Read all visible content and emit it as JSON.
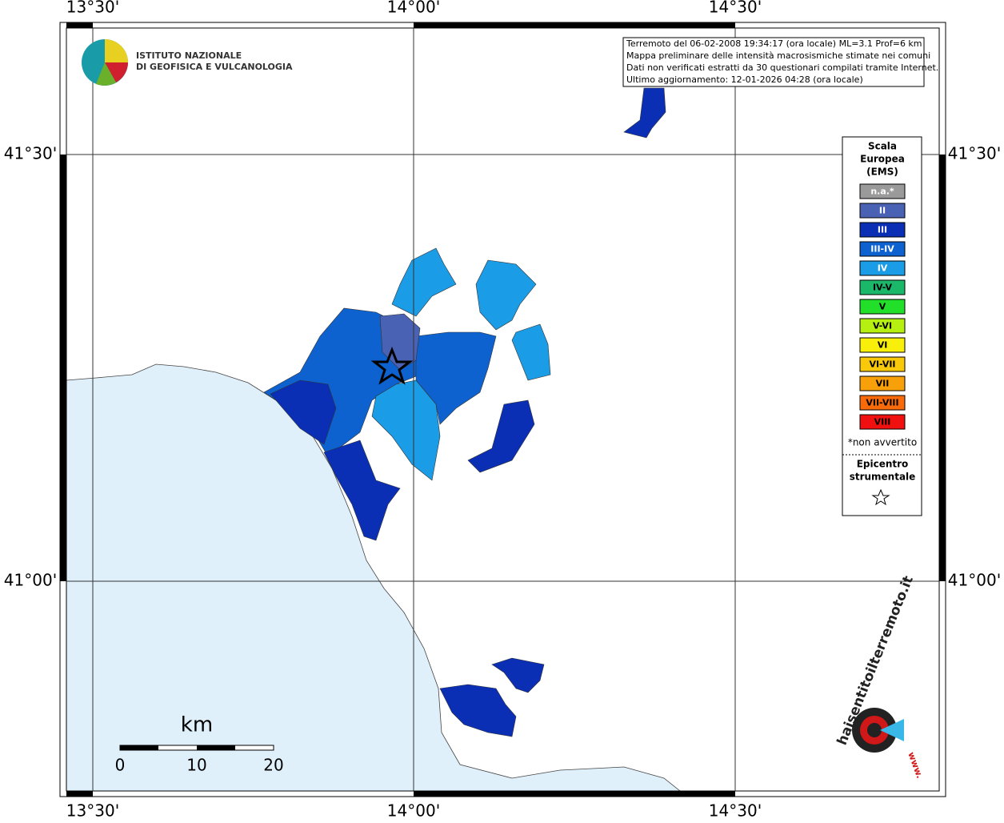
{
  "map": {
    "lon_labels": [
      "13°30'",
      "14°00'",
      "14°30'"
    ],
    "lat_labels": [
      "41°30'",
      "41°00'"
    ],
    "info_box": {
      "lines": [
        "Terremoto del 06-02-2008 19:34:17 (ora locale) ML=3.1 Prof=6 km",
        "Mappa preliminare delle intensità macrosismiche stimate nei comuni",
        "Dati non verificati estratti da 30 questionari compilati tramite Internet.",
        "Ultimo aggiornamento: 12-01-2026 04:28 (ora locale)"
      ]
    },
    "logo": {
      "lines": [
        "ISTITUTO NAZIONALE",
        "DI GEOFISICA E VULCANOLOGIA"
      ]
    },
    "legend": {
      "title": [
        "Scala",
        "Europea",
        "(EMS)"
      ],
      "items": [
        {
          "label": "n.a.*",
          "color": "#9a9a9a",
          "text_color": "#ffffff"
        },
        {
          "label": "II",
          "color": "#4a62b4",
          "text_color": "#ffffff"
        },
        {
          "label": "III",
          "color": "#0a2fb5",
          "text_color": "#ffffff"
        },
        {
          "label": "III-IV",
          "color": "#0d62cf",
          "text_color": "#ffffff"
        },
        {
          "label": "IV",
          "color": "#1a9ce6",
          "text_color": "#ffffff"
        },
        {
          "label": "IV-V",
          "color": "#1cb86a",
          "text_color": "#000000"
        },
        {
          "label": "V",
          "color": "#22e02a",
          "text_color": "#000000"
        },
        {
          "label": "V-VI",
          "color": "#b6f010",
          "text_color": "#000000"
        },
        {
          "label": "VI",
          "color": "#f8f00a",
          "text_color": "#000000"
        },
        {
          "label": "VI-VII",
          "color": "#f8c80a",
          "text_color": "#000000"
        },
        {
          "label": "VII",
          "color": "#f8a00a",
          "text_color": "#000000"
        },
        {
          "label": "VII-VIII",
          "color": "#f86a0a",
          "text_color": "#000000"
        },
        {
          "label": "VIII",
          "color": "#f01010",
          "text_color": "#000000"
        }
      ],
      "note": "*non avvertito",
      "epicenter_title": [
        "Epicentro",
        "strumentale"
      ]
    },
    "scale_bar": {
      "unit": "km",
      "ticks": [
        "0",
        "10",
        "20"
      ]
    },
    "site_logo": {
      "name": "haisentitoilterremoto.it",
      "url": "www."
    }
  }
}
